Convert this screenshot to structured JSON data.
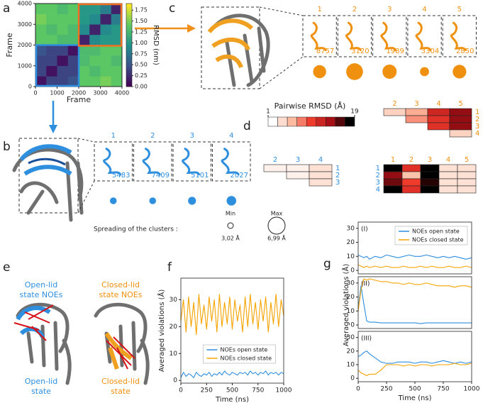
{
  "panel_labels": [
    "a",
    "b",
    "c",
    "d",
    "e",
    "f",
    "g"
  ],
  "panel_e": {
    "open_title": [
      "Open-lid",
      "state NOEs"
    ],
    "closed_title": [
      "Closed-lid",
      "state NOEs"
    ],
    "open_state": [
      "Open-lid",
      "state"
    ],
    "closed_state": [
      "Closed-lid",
      "state"
    ]
  },
  "chart_data": [
    {
      "type": "heatmap",
      "xlabel": "Frame",
      "ylabel": "Frame",
      "colorbar_label": "RMSD (nm)",
      "xlim": [
        0,
        4000
      ],
      "ylim": [
        0,
        4000
      ],
      "xticks": [
        0,
        1000,
        2000,
        3000,
        4000
      ],
      "yticks": [
        0,
        1000,
        2000,
        3000,
        4000
      ],
      "clim": [
        0,
        1.9
      ],
      "cticks": [
        {
          "value": 0,
          "label": "0.00"
        },
        0.25,
        {
          "value": 0.5,
          "label": "0.50"
        },
        0.75,
        {
          "value": 1,
          "label": "1.00"
        },
        1.25,
        {
          "value": 1.5,
          "label": "1.50"
        },
        1.75
      ],
      "values": [
        [
          0.1,
          0.4,
          0.4,
          0.5,
          1.4,
          1.4,
          1.5,
          1.4
        ],
        [
          0.4,
          0.1,
          0.4,
          0.4,
          1.4,
          1.3,
          1.4,
          1.4
        ],
        [
          0.4,
          0.4,
          0.1,
          0.4,
          1.3,
          1.4,
          1.4,
          1.3
        ],
        [
          0.5,
          0.4,
          0.4,
          0.1,
          1.3,
          1.3,
          1.4,
          1.4
        ],
        [
          1.4,
          1.4,
          1.3,
          1.3,
          0.2,
          0.9,
          1.0,
          1.0
        ],
        [
          1.4,
          1.3,
          1.4,
          1.3,
          0.9,
          0.2,
          0.9,
          1.0
        ],
        [
          1.5,
          1.4,
          1.4,
          1.4,
          1.0,
          0.9,
          0.2,
          0.8
        ],
        [
          1.4,
          1.4,
          1.3,
          1.4,
          1.0,
          1.0,
          0.8,
          0.2
        ]
      ]
    },
    {
      "type": "clusters",
      "color": "#2f8fdf",
      "labels": [
        "1",
        "2",
        "3",
        "4"
      ],
      "counts": [
        5483,
        7409,
        5101,
        2027
      ],
      "spread": [
        3.4,
        3.4,
        3.8,
        4.4
      ],
      "spread_title": "Spreading of the clusters :",
      "min_label": "Min",
      "max_label": "Max",
      "spread_min": {
        "value": 3.02,
        "label": "3,02 Å"
      },
      "spread_max": {
        "value": 6.99,
        "label": "6,99 Å"
      }
    },
    {
      "type": "clusters",
      "color": "#f0900f",
      "labels": [
        "1",
        "2",
        "3",
        "4",
        "5"
      ],
      "counts": [
        8757,
        3120,
        1989,
        3304,
        2850
      ],
      "spread": [
        5.6,
        6.9,
        6.0,
        4.2,
        5.8
      ]
    },
    {
      "type": "matrix",
      "title": "Pairwise RMSD (Å)",
      "clim": [
        1,
        19
      ],
      "cticks": [
        1,
        19
      ],
      "matrices": [
        {
          "col_color": "#f0900f",
          "row_color": "#f0900f",
          "col_labels": [
            "2",
            "3",
            "4",
            "5"
          ],
          "row_labels": [
            "1",
            "2",
            "3",
            "4"
          ],
          "values": [
            [
              4,
              6,
              12,
              15
            ],
            [
              null,
              7,
              11,
              15
            ],
            [
              null,
              null,
              11,
              15
            ],
            [
              null,
              null,
              null,
              4
            ]
          ]
        },
        {
          "col_color": "#2f8fdf",
          "row_color": "#2f8fdf",
          "col_labels": [
            "2",
            "3",
            "4"
          ],
          "row_labels": [
            "1",
            "2",
            "3"
          ],
          "values": [
            [
              2,
              2,
              3
            ],
            [
              null,
              2,
              3
            ],
            [
              null,
              null,
              3
            ]
          ]
        },
        {
          "col_color": "#f0900f",
          "row_color": "#2f8fdf",
          "col_labels": [
            "1",
            "2",
            "3",
            "4",
            "5"
          ],
          "row_labels": [
            "1",
            "2",
            "3",
            "4"
          ],
          "values": [
            [
              19,
              11,
              19,
              3,
              3
            ],
            [
              15,
              5,
              19,
              3,
              3
            ],
            [
              16,
              10,
              18,
              3,
              3
            ],
            [
              19,
              11,
              19,
              3,
              3
            ]
          ]
        }
      ]
    },
    {
      "type": "line",
      "xlabel": "Time (ns)",
      "ylabel": "Averaged violations (Å)",
      "xlim": [
        0,
        1000
      ],
      "ylim": [
        -1,
        38
      ],
      "xticks": [
        0,
        250,
        500,
        750,
        1000
      ],
      "yticks": [
        0,
        10,
        20,
        30
      ],
      "legend": "lower center",
      "x": [
        0,
        25,
        50,
        75,
        100,
        125,
        150,
        175,
        200,
        225,
        250,
        275,
        300,
        325,
        350,
        375,
        400,
        425,
        450,
        475,
        500,
        525,
        550,
        575,
        600,
        625,
        650,
        675,
        700,
        725,
        750,
        775,
        800,
        825,
        850,
        875,
        900,
        925,
        950,
        975,
        1000
      ],
      "series": [
        {
          "name": "NOEs open state",
          "color": "#2f8fdf",
          "values": [
            1,
            3,
            1.5,
            2.5,
            2,
            1,
            3,
            2,
            1.5,
            2.5,
            2,
            3,
            1.5,
            2.5,
            2,
            3,
            2,
            3.5,
            2.5,
            2,
            3,
            2.5,
            2,
            3,
            2.5,
            3,
            2,
            3.5,
            2.5,
            3,
            2,
            3,
            2.5,
            3.5,
            2,
            3,
            2.5,
            3,
            2,
            3,
            2.5
          ]
        },
        {
          "name": "NOEs closed state",
          "color": "#f5a300",
          "values": [
            22,
            30,
            18,
            31,
            20,
            29,
            17,
            32,
            21,
            28,
            19,
            31,
            22,
            30,
            18,
            32,
            20,
            29,
            21,
            31,
            19,
            30,
            22,
            28,
            18,
            31,
            20,
            32,
            21,
            29,
            19,
            30,
            22,
            31,
            18,
            29,
            21,
            32,
            20,
            30,
            24
          ]
        }
      ]
    },
    {
      "type": "line",
      "panel": "(I)",
      "ylabel": "Averaged violations (Å)",
      "xlim": [
        0,
        1000
      ],
      "ylim": [
        -2.5,
        34.5
      ],
      "yticks": [
        0,
        10,
        20,
        30
      ],
      "legend": "upper right",
      "x": [
        0,
        25,
        50,
        75,
        100,
        150,
        200,
        250,
        300,
        350,
        400,
        450,
        500,
        550,
        600,
        650,
        700,
        750,
        800,
        850,
        900,
        950,
        1000
      ],
      "series": [
        {
          "name": "NOEs open state",
          "color": "#2f8fdf",
          "values": [
            11,
            10,
            9,
            10,
            8,
            10,
            9,
            11,
            10,
            9,
            10,
            11,
            10,
            10,
            11,
            10,
            9,
            10,
            9,
            10,
            9,
            8,
            9
          ]
        },
        {
          "name": "NOEs closed state",
          "color": "#f5a300",
          "values": [
            4,
            3,
            2,
            3,
            2,
            3,
            2,
            3,
            2,
            2,
            3,
            2,
            2,
            3,
            2,
            3,
            2,
            2,
            3,
            2,
            2,
            3,
            2
          ]
        }
      ]
    },
    {
      "type": "line",
      "panel": "(II)",
      "xlim": [
        0,
        1000
      ],
      "ylim": [
        -2.5,
        34.5
      ],
      "yticks": [
        0,
        10,
        20,
        30
      ],
      "x": [
        0,
        25,
        50,
        75,
        100,
        150,
        200,
        250,
        300,
        350,
        400,
        450,
        500,
        550,
        600,
        650,
        700,
        750,
        800,
        850,
        900,
        950,
        1000
      ],
      "series": [
        {
          "color": "#2f8fdf",
          "values": [
            12,
            28,
            15,
            3,
            2,
            2,
            1.5,
            1.5,
            1.5,
            1.5,
            1.5,
            1.5,
            1.5,
            1,
            1.5,
            1.5,
            1.5,
            1.5,
            1.5,
            1.5,
            1.5,
            1.5,
            1.5
          ]
        },
        {
          "color": "#f5a300",
          "values": [
            10,
            25,
            33,
            32,
            33,
            32,
            31,
            31,
            30,
            30,
            29,
            30,
            29,
            29,
            30,
            29,
            28,
            28,
            28,
            27,
            28,
            28,
            27
          ]
        }
      ]
    },
    {
      "type": "line",
      "panel": "(III)",
      "xlabel": "Time (ns)",
      "xlim": [
        0,
        1000
      ],
      "ylim": [
        -2.5,
        34.5
      ],
      "xticks": [
        0,
        250,
        500,
        750,
        1000
      ],
      "yticks": [
        0,
        10,
        20,
        30
      ],
      "x": [
        0,
        25,
        50,
        75,
        100,
        150,
        200,
        250,
        300,
        350,
        400,
        450,
        500,
        550,
        600,
        650,
        700,
        750,
        800,
        850,
        900,
        950,
        1000
      ],
      "series": [
        {
          "color": "#2f8fdf",
          "values": [
            16,
            17,
            19,
            20,
            18,
            15,
            12,
            11,
            11,
            12,
            12,
            12,
            11,
            12,
            12,
            11,
            12,
            13,
            12,
            11,
            12,
            11,
            12
          ]
        },
        {
          "color": "#f5a300",
          "values": [
            6,
            4,
            3,
            2,
            3,
            3,
            6,
            10,
            10,
            10,
            9,
            10,
            9,
            10,
            10,
            9,
            10,
            10,
            10,
            11,
            10,
            10,
            11
          ]
        }
      ]
    }
  ]
}
